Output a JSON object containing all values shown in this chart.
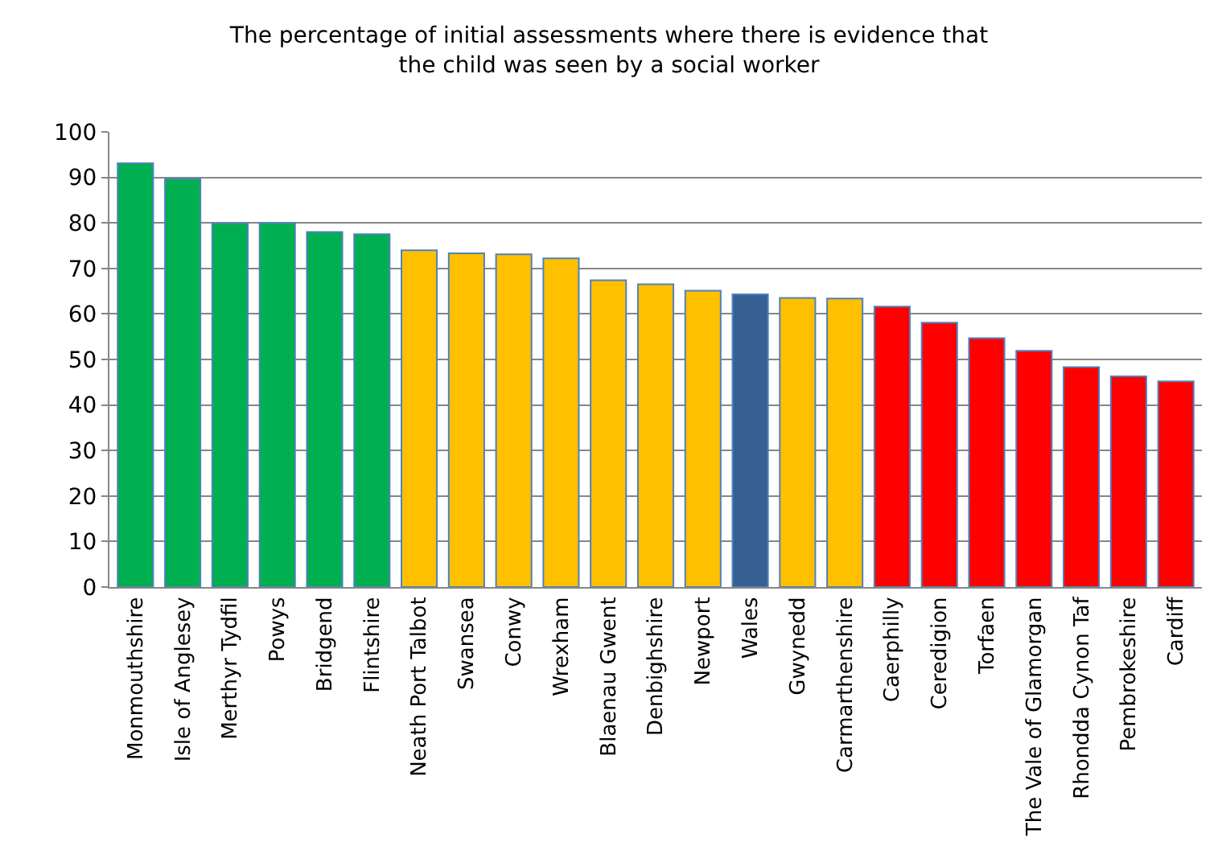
{
  "chart_data": {
    "type": "bar",
    "title": "The percentage of initial assessments where there is evidence that\nthe child was seen by a social worker",
    "categories": [
      "Monmouthshire",
      "Isle of Anglesey",
      "Merthyr Tydfil",
      "Powys",
      "Bridgend",
      "Flintshire",
      "Neath Port Talbot",
      "Swansea",
      "Conwy",
      "Wrexham",
      "Blaenau Gwent",
      "Denbighshire",
      "Newport",
      "Wales",
      "Gwynedd",
      "Carmarthenshire",
      "Caerphilly",
      "Ceredigion",
      "Torfaen",
      "The Vale of Glamorgan",
      "Rhondda Cynon Taf",
      "Pembrokeshire",
      "Cardiff"
    ],
    "values": [
      93.1,
      89.7,
      79.9,
      80.0,
      78.0,
      77.5,
      74.0,
      73.3,
      73.1,
      72.2,
      67.4,
      66.5,
      65.1,
      64.3,
      63.5,
      63.4,
      61.6,
      58.1,
      54.7,
      51.9,
      48.3,
      46.3,
      45.2
    ],
    "colors": [
      "#00b050",
      "#00b050",
      "#00b050",
      "#00b050",
      "#00b050",
      "#00b050",
      "#ffc000",
      "#ffc000",
      "#ffc000",
      "#ffc000",
      "#ffc000",
      "#ffc000",
      "#ffc000",
      "#376092",
      "#ffc000",
      "#ffc000",
      "#ff0000",
      "#ff0000",
      "#ff0000",
      "#ff0000",
      "#ff0000",
      "#ff0000",
      "#ff0000"
    ],
    "ylim": [
      0,
      100
    ],
    "yticks": [
      0,
      10,
      20,
      30,
      40,
      50,
      60,
      70,
      80,
      90,
      100
    ],
    "grid": "y"
  }
}
